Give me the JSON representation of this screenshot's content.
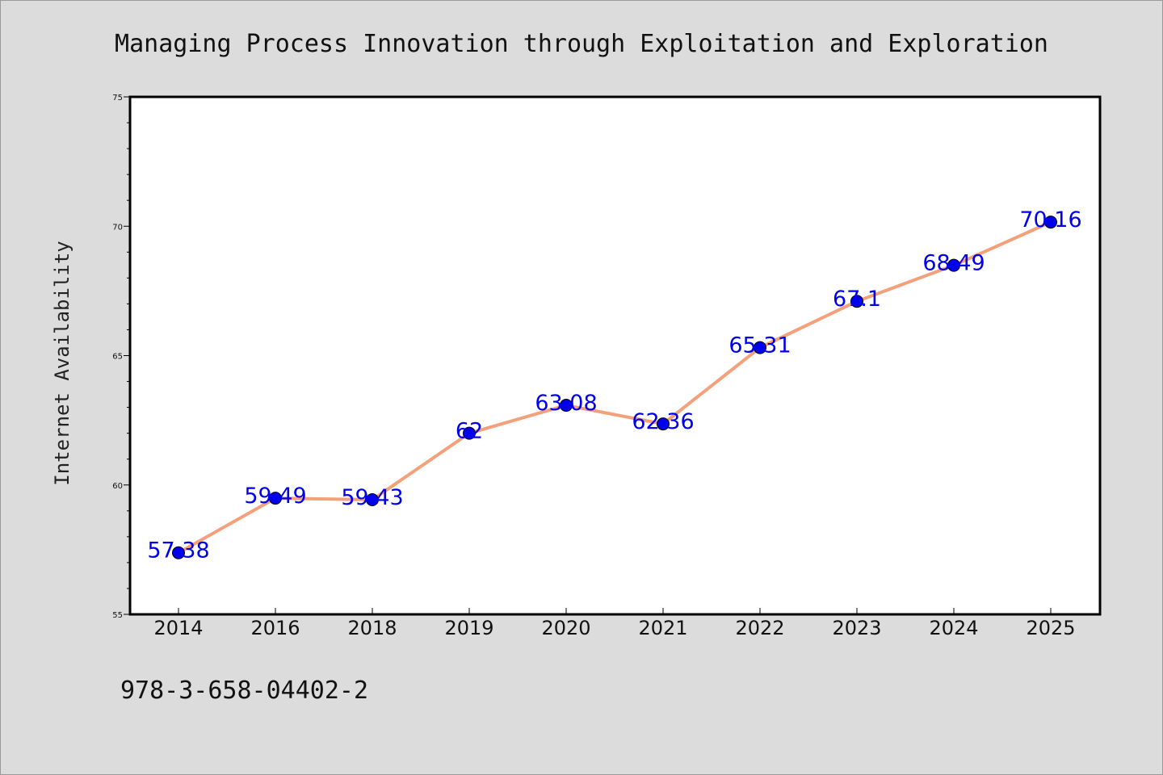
{
  "chart_data": {
    "type": "line",
    "title": "Managing Process Innovation through Exploitation and Exploration",
    "xlabel": "",
    "ylabel": "Internet Availability",
    "categories": [
      "2014",
      "2016",
      "2018",
      "2019",
      "2020",
      "2021",
      "2022",
      "2023",
      "2024",
      "2025"
    ],
    "series": [
      {
        "values": [
          57.38,
          59.49,
          59.43,
          62,
          63.08,
          62.36,
          65.31,
          67.1,
          68.49,
          70.16
        ],
        "data_labels": [
          "57.38",
          "59.49",
          "59.43",
          "62",
          "63.08",
          "62.36",
          "65.31",
          "67.1",
          "68.49",
          "70.16"
        ]
      }
    ],
    "ylim": [
      55,
      75
    ],
    "yticks": [
      "55",
      "60",
      "65",
      "70",
      "75"
    ],
    "grid": false,
    "legend": "none",
    "colors": {
      "line": "#f4a07a",
      "marker": "#0000ee",
      "label": "#0000ee",
      "plot_bg": "#ffffff",
      "page_bg": "#dcdcdc"
    },
    "footer": "978-3-658-04402-2"
  }
}
